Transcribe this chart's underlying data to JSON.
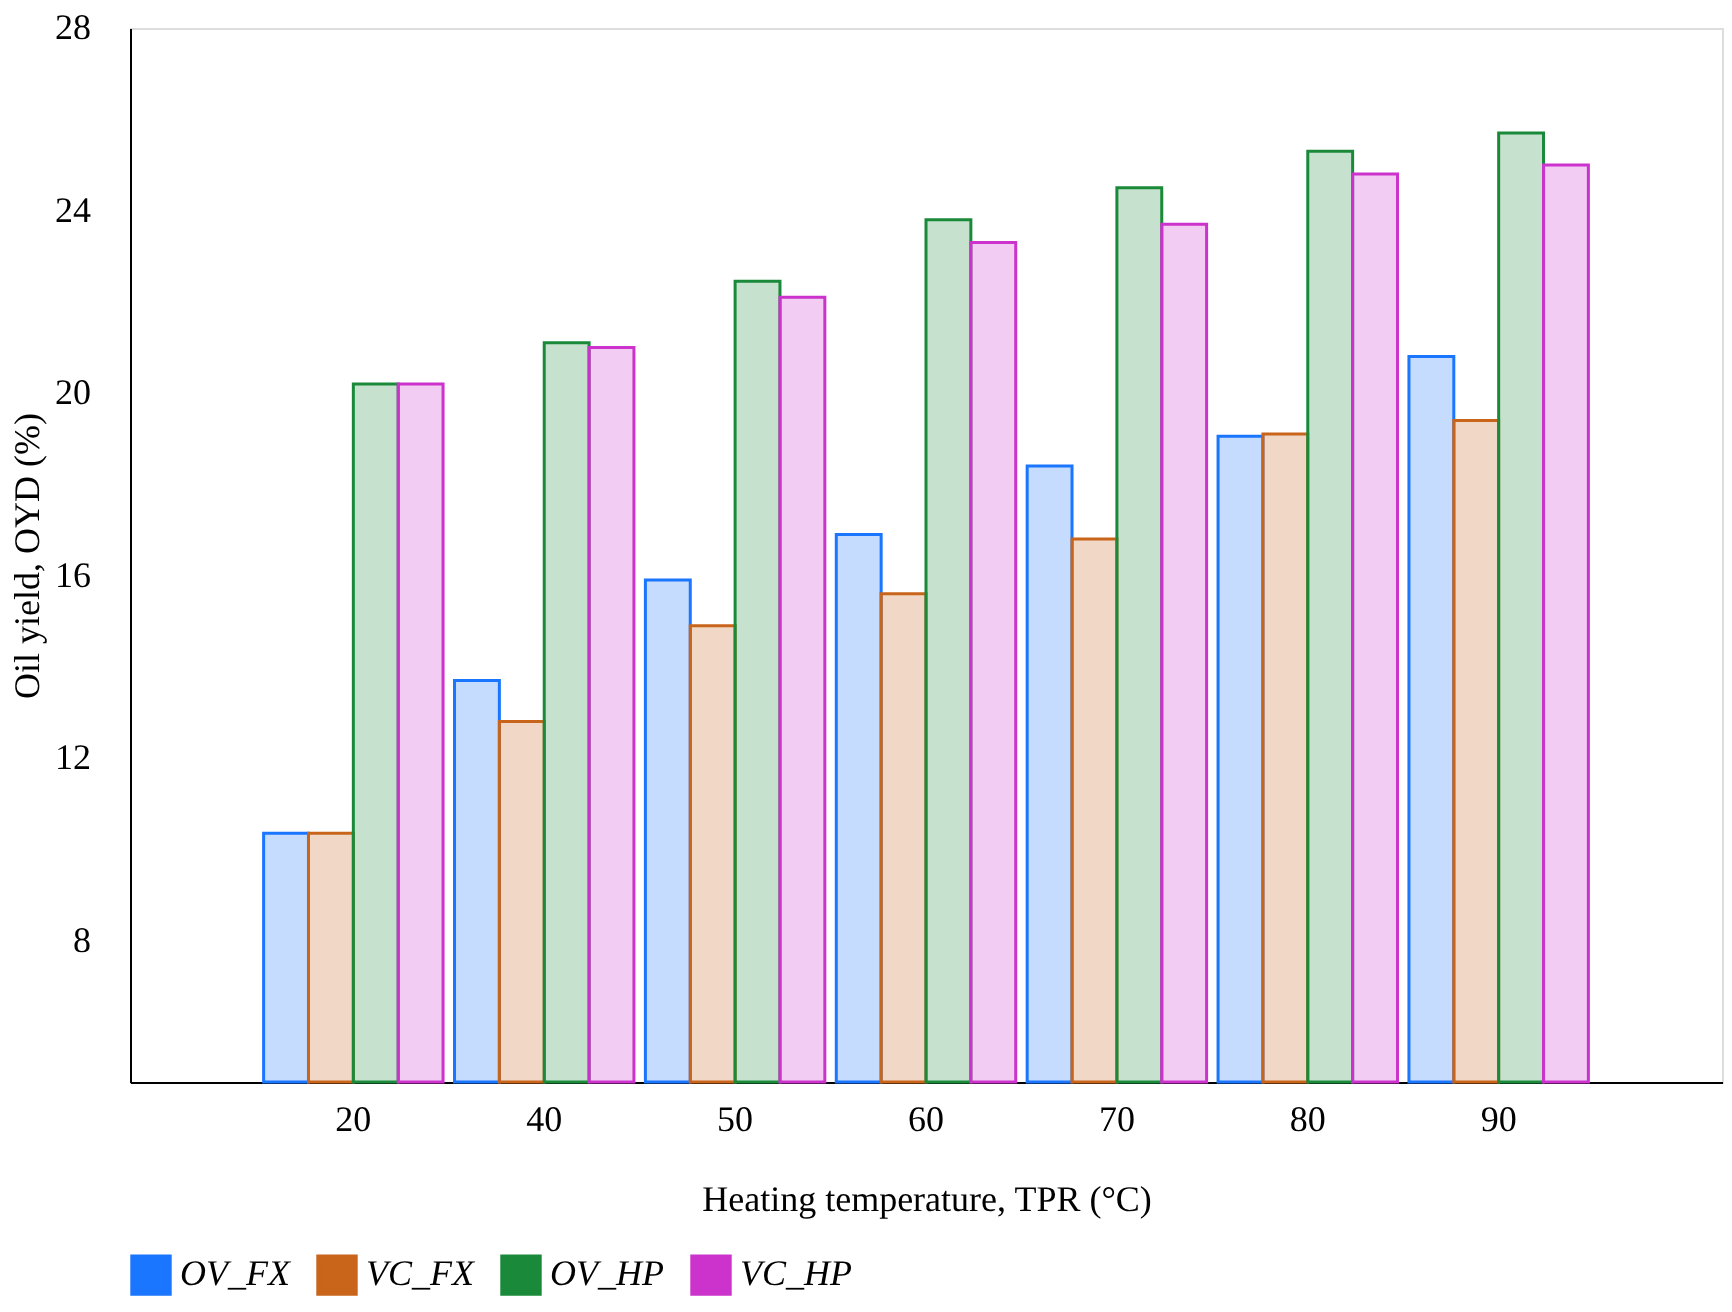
{
  "chart_data": {
    "type": "bar",
    "xlabel": "Heating temperature, TPR (°C)",
    "ylabel": "Oil yield, OYD (%)",
    "categories": [
      "20",
      "40",
      "50",
      "60",
      "70",
      "80",
      "90"
    ],
    "series": [
      {
        "name": "OV_FX",
        "color": "#1a75ff",
        "values": [
          10.35,
          13.7,
          15.9,
          16.9,
          18.4,
          19.05,
          20.8
        ]
      },
      {
        "name": "VC_FX",
        "color": "#c8651b",
        "values": [
          10.35,
          12.8,
          14.9,
          15.6,
          16.8,
          19.1,
          19.4
        ]
      },
      {
        "name": "OV_HP",
        "color": "#1a8a3a",
        "values": [
          20.2,
          21.1,
          22.45,
          23.8,
          24.5,
          25.3,
          25.7
        ]
      },
      {
        "name": "VC_HP",
        "color": "#cc33cc",
        "values": [
          20.2,
          21.0,
          22.1,
          23.3,
          23.7,
          24.8,
          25.0
        ]
      }
    ],
    "ylim": [
      4.9,
      28
    ],
    "yticks": [
      8,
      12,
      16,
      20,
      24,
      28
    ],
    "grid": false,
    "legend": "bottom"
  }
}
